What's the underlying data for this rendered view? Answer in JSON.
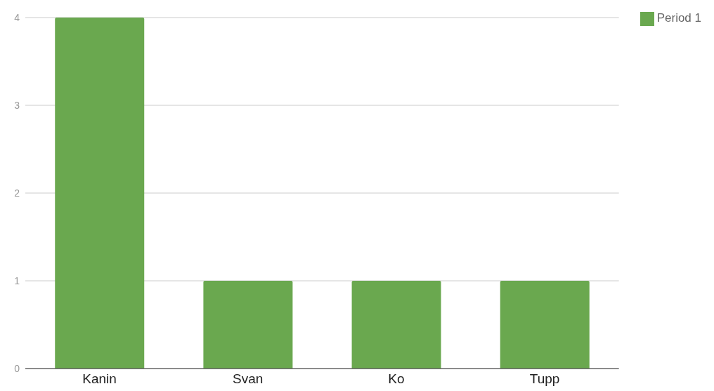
{
  "chart_data": {
    "type": "bar",
    "categories": [
      "Kanin",
      "Svan",
      "Ko",
      "Tupp"
    ],
    "series": [
      {
        "name": "Period 1",
        "color": "#6aa84f",
        "values": [
          4,
          1,
          1,
          1
        ]
      }
    ],
    "ylim": [
      0,
      4
    ],
    "yticks": [
      0,
      1,
      2,
      3,
      4
    ],
    "grid": "y",
    "legend": "top right"
  }
}
